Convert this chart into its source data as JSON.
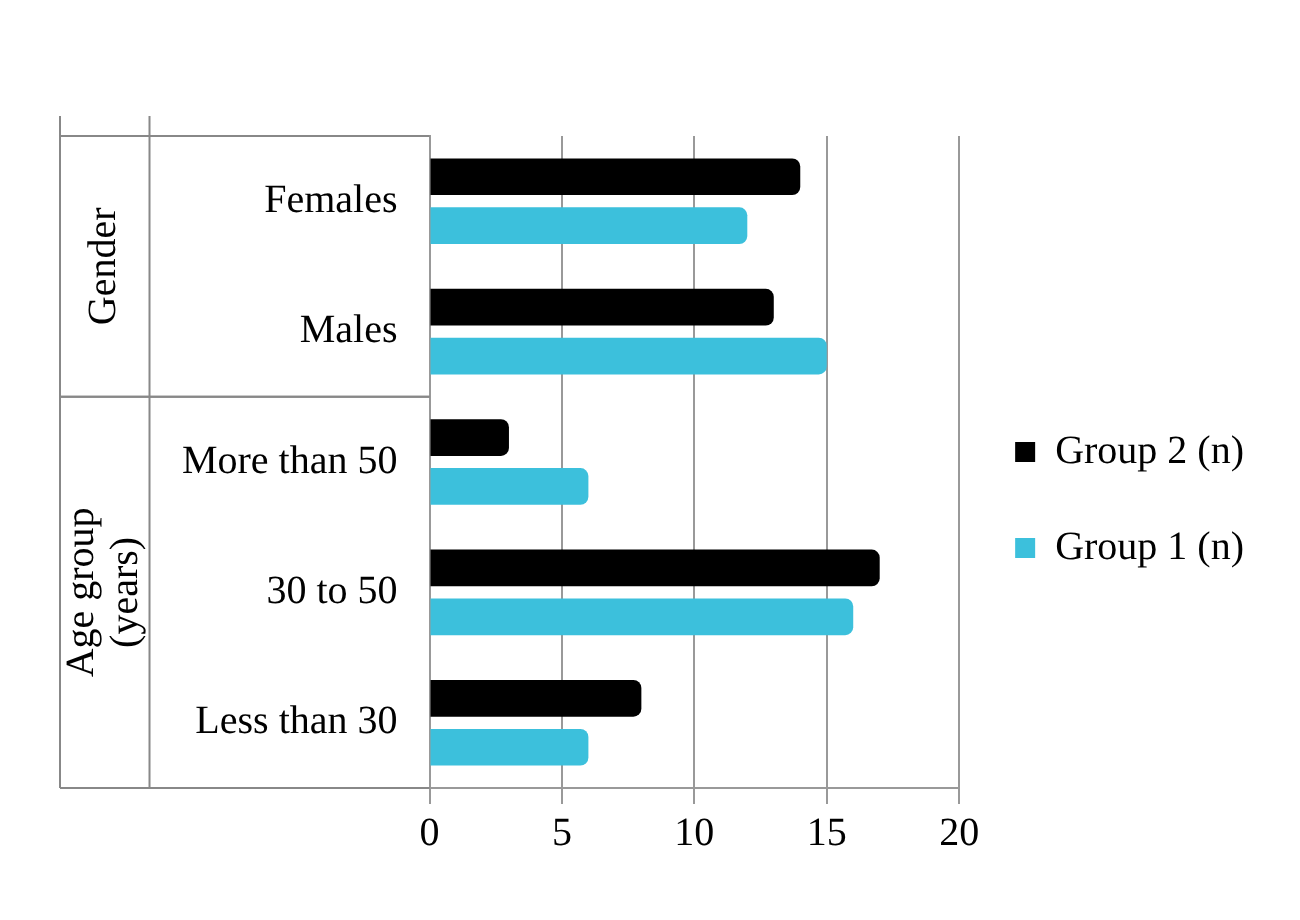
{
  "chart_data": {
    "type": "bar",
    "orientation": "horizontal",
    "categories": [
      "Females",
      "Males",
      "More than 50",
      "30 to 50",
      "Less than 30"
    ],
    "series": [
      {
        "name": "Group 2 (n)",
        "color": "#000000",
        "values": [
          14,
          13,
          3,
          17,
          8
        ]
      },
      {
        "name": "Group 1 (n)",
        "color": "#3cc0dc",
        "values": [
          12,
          15,
          6,
          16,
          6
        ]
      }
    ],
    "xlim": [
      0,
      20
    ],
    "xticks": [
      0,
      5,
      10,
      15,
      20
    ],
    "grid": "x",
    "legend": "right",
    "annotations": [
      "Gender",
      "Age group (years)"
    ]
  }
}
